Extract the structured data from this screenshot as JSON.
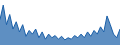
{
  "chart_data": {
    "type": "area",
    "values": [
      55,
      75,
      48,
      62,
      42,
      52,
      38,
      48,
      32,
      40,
      35,
      42,
      30,
      38,
      28,
      35,
      30,
      33,
      28,
      32,
      27,
      30,
      28,
      33,
      30,
      35,
      30,
      38,
      32,
      40,
      35,
      45,
      38,
      60,
      48,
      35,
      30,
      42
    ],
    "color": "#1a5fa8",
    "xlim": [
      0,
      37
    ],
    "ylim": [
      20,
      82
    ],
    "tick_labels": false,
    "grid": false
  }
}
